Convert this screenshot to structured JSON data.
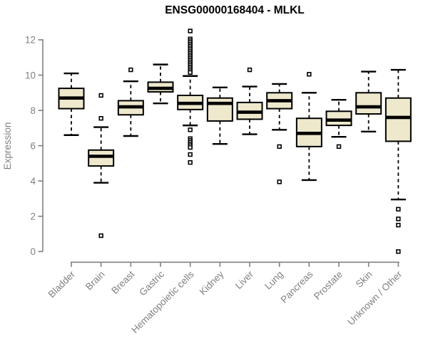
{
  "chart_data": {
    "type": "boxplot",
    "title": "ENSG00000168404 - MLKL",
    "ylabel": "Expression",
    "xlabel": "",
    "ylim": [
      0,
      12
    ],
    "yticks": [
      0,
      2,
      4,
      6,
      8,
      10,
      12
    ],
    "grid": false,
    "legend": false,
    "box_fill_color": "#EEE8CD",
    "box_line_color": "#000000",
    "axis_color": "#808080",
    "title_color": "#000000",
    "categories": [
      "Bladder",
      "Brain",
      "Breast",
      "Gastric",
      "Hematopoietic cells",
      "Kidney",
      "Liver",
      "Lung",
      "Pancreas",
      "Prostate",
      "Skin",
      "Unknown / Other"
    ],
    "series": [
      {
        "category": "Bladder",
        "whisker_low": 6.6,
        "q1": 8.1,
        "median": 8.7,
        "q3": 9.25,
        "whisker_high": 10.1,
        "outliers": []
      },
      {
        "category": "Brain",
        "whisker_low": 3.9,
        "q1": 4.85,
        "median": 5.4,
        "q3": 5.75,
        "whisker_high": 7.05,
        "outliers": [
          8.85,
          7.55,
          0.9
        ]
      },
      {
        "category": "Breast",
        "whisker_low": 6.55,
        "q1": 7.75,
        "median": 8.2,
        "q3": 8.55,
        "whisker_high": 9.65,
        "outliers": [
          10.3
        ]
      },
      {
        "category": "Gastric",
        "whisker_low": 8.4,
        "q1": 9.05,
        "median": 9.25,
        "q3": 9.6,
        "whisker_high": 10.6,
        "outliers": []
      },
      {
        "category": "Hematopoietic cells",
        "whisker_low": 7.15,
        "q1": 8.05,
        "median": 8.4,
        "q3": 8.85,
        "whisker_high": 9.95,
        "outliers": [
          12.5,
          12.05,
          11.95,
          11.85,
          11.75,
          11.65,
          11.55,
          11.45,
          11.35,
          11.25,
          11.15,
          11.05,
          10.95,
          10.85,
          10.75,
          10.65,
          10.55,
          10.45,
          10.35,
          10.25,
          10.15,
          6.9,
          6.4,
          6.3,
          6.2,
          6.1,
          6.0,
          5.9,
          5.5,
          5.05
        ]
      },
      {
        "category": "Kidney",
        "whisker_low": 6.1,
        "q1": 7.4,
        "median": 8.4,
        "q3": 8.7,
        "whisker_high": 9.3,
        "outliers": []
      },
      {
        "category": "Liver",
        "whisker_low": 6.65,
        "q1": 7.5,
        "median": 7.9,
        "q3": 8.45,
        "whisker_high": 9.35,
        "outliers": [
          10.3
        ]
      },
      {
        "category": "Lung",
        "whisker_low": 6.9,
        "q1": 8.1,
        "median": 8.55,
        "q3": 9.0,
        "whisker_high": 9.5,
        "outliers": [
          5.95,
          3.95
        ]
      },
      {
        "category": "Pancreas",
        "whisker_low": 4.05,
        "q1": 5.95,
        "median": 6.7,
        "q3": 7.55,
        "whisker_high": 9.0,
        "outliers": [
          10.05
        ]
      },
      {
        "category": "Prostate",
        "whisker_low": 6.5,
        "q1": 7.15,
        "median": 7.45,
        "q3": 7.95,
        "whisker_high": 8.6,
        "outliers": [
          5.95
        ]
      },
      {
        "category": "Skin",
        "whisker_low": 6.8,
        "q1": 7.8,
        "median": 8.2,
        "q3": 9.0,
        "whisker_high": 10.2,
        "outliers": []
      },
      {
        "category": "Unknown / Other",
        "whisker_low": 2.95,
        "q1": 6.25,
        "median": 7.6,
        "q3": 8.7,
        "whisker_high": 10.3,
        "outliers": [
          2.4,
          1.85,
          1.5,
          0.0
        ]
      }
    ]
  }
}
